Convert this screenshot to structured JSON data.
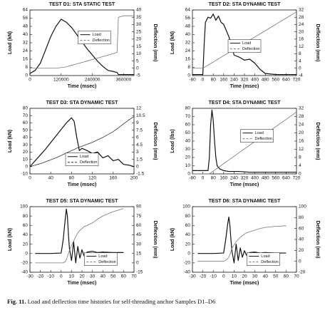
{
  "chart_data": [
    {
      "type": "line",
      "title": "TEST D1: STA STATIC TEST",
      "x_label": "Time (msec)",
      "y_label": "Load (kN)",
      "y2_label": "Deflection (mm)",
      "x": [
        0,
        20000,
        40000,
        60000,
        80000,
        100000,
        120000,
        140000,
        160000,
        180000,
        200000,
        220000,
        240000,
        260000,
        280000,
        300000,
        320000,
        335000,
        340000,
        360000,
        380000,
        400000
      ],
      "xlim": [
        0,
        400000
      ],
      "xticks": [
        0,
        120000,
        240000,
        360000
      ],
      "ylim": [
        0,
        64
      ],
      "yticks": [
        0,
        8,
        16,
        24,
        32,
        40,
        48,
        56,
        64
      ],
      "y2lim": [
        -5,
        40
      ],
      "y2ticks": [
        -5,
        0,
        5,
        10,
        15,
        20,
        25,
        30,
        35,
        40
      ],
      "legend": "center-right",
      "series": [
        {
          "name": "Load",
          "color": "#111111",
          "dashed": false,
          "values": [
            2,
            5,
            12,
            25,
            38,
            48,
            55,
            52,
            47,
            40,
            33,
            26,
            20,
            14,
            9,
            5,
            4,
            3,
            1,
            1,
            1,
            1
          ]
        },
        {
          "name": "Deflection",
          "color": "#777777",
          "dashed": true,
          "axis": "y2",
          "values": [
            0,
            0,
            0,
            0,
            0,
            0,
            0.5,
            1,
            2,
            3,
            4,
            5,
            6,
            7,
            8,
            9,
            10,
            11,
            35,
            36,
            36,
            36
          ]
        }
      ]
    },
    {
      "type": "line",
      "title": "TEST D2: STA DYNAMIC TEST",
      "x_label": "Time (msec)",
      "y_label": "Load (kN)",
      "y2_label": "Deflection (mm)",
      "x": [
        -80,
        -20,
        0,
        10,
        20,
        40,
        60,
        80,
        100,
        120,
        140,
        160,
        180,
        200,
        220,
        240,
        280,
        320,
        360,
        400,
        440,
        480,
        560,
        640,
        720
      ],
      "xlim": [
        -80,
        720
      ],
      "xticks": [
        -80,
        0,
        80,
        160,
        240,
        320,
        400,
        480,
        560,
        640,
        720
      ],
      "ylim": [
        0,
        64
      ],
      "yticks": [
        0,
        8,
        16,
        24,
        32,
        40,
        48,
        56,
        64
      ],
      "y2lim": [
        -4,
        32
      ],
      "y2ticks": [
        -4,
        0,
        4,
        8,
        12,
        16,
        20,
        24,
        28,
        32
      ],
      "legend": "center",
      "series": [
        {
          "name": "Load",
          "color": "#111111",
          "dashed": false,
          "values": [
            1,
            1,
            1,
            30,
            52,
            57,
            56,
            60,
            54,
            58,
            52,
            50,
            44,
            38,
            30,
            20,
            18,
            15,
            16,
            12,
            6,
            2,
            1,
            1,
            1
          ]
        },
        {
          "name": "Deflection",
          "color": "#777777",
          "dashed": true,
          "axis": "y2",
          "values": [
            0,
            0,
            0,
            0.4,
            0.9,
            1.7,
            2.6,
            3.4,
            4.3,
            5.2,
            6,
            6.9,
            7.7,
            8.6,
            9.5,
            10.3,
            12,
            13.8,
            15.5,
            17.2,
            18.9,
            20.6,
            24.1,
            27.5,
            31
          ]
        }
      ]
    },
    {
      "type": "line",
      "title": "TEST D3: STA DYNAMIC TEST",
      "x_label": "Time (msec)",
      "y_label": "Load (kN)",
      "y2_label": "Deflection (mm)",
      "x": [
        0,
        10,
        20,
        30,
        40,
        50,
        60,
        70,
        80,
        85,
        90,
        95,
        100,
        110,
        120,
        130,
        140,
        150,
        160,
        170,
        180,
        190,
        200
      ],
      "xlim": [
        0,
        200
      ],
      "xticks": [
        0,
        40,
        80,
        120,
        160,
        200
      ],
      "ylim": [
        -10,
        80
      ],
      "yticks": [
        -10,
        0,
        10,
        20,
        30,
        40,
        50,
        60,
        70,
        80
      ],
      "y2lim": [
        -1.5,
        12
      ],
      "y2ticks": [
        -1.5,
        0,
        1.5,
        3,
        4.5,
        6,
        7.5,
        9,
        10.5,
        12
      ],
      "legend": "bottom-center",
      "series": [
        {
          "name": "Load",
          "color": "#111111",
          "dashed": false,
          "values": [
            0,
            8,
            16,
            24,
            33,
            42,
            51,
            60,
            67,
            62,
            40,
            22,
            25,
            22,
            18,
            20,
            12,
            15,
            8,
            10,
            3,
            2,
            0
          ]
        },
        {
          "name": "Deflection",
          "color": "#333333",
          "dashed": true,
          "axis": "y2",
          "values": [
            0,
            0.3,
            0.6,
            1,
            1.4,
            1.8,
            2.3,
            2.8,
            3.3,
            3.5,
            3.8,
            4,
            4.2,
            4.6,
            5,
            5.5,
            6,
            6.6,
            7.2,
            8,
            8.8,
            9.6,
            10.3
          ]
        }
      ]
    },
    {
      "type": "line",
      "title": "TEST D4: STA DYNAMIC TEST",
      "x_label": "Time (msec)",
      "y_label": "Load (lbs)",
      "y2_label": "Deflection (mm)",
      "x": [
        -80,
        0,
        40,
        50,
        60,
        70,
        80,
        90,
        100,
        110,
        130,
        160,
        200,
        280,
        360,
        440,
        520,
        600,
        720
      ],
      "xlim": [
        -80,
        720
      ],
      "xticks": [
        -80,
        0,
        80,
        160,
        240,
        320,
        400,
        480,
        560,
        640,
        720
      ],
      "ylim": [
        0,
        80
      ],
      "yticks": [
        0,
        10,
        20,
        30,
        40,
        50,
        60,
        70,
        80
      ],
      "y2lim": [
        0,
        32
      ],
      "y2ticks": [
        0,
        4,
        8,
        12,
        16,
        20,
        24,
        28,
        32
      ],
      "legend": "center-right",
      "series": [
        {
          "name": "Load",
          "color": "#111111",
          "dashed": false,
          "values": [
            4,
            4,
            4,
            20,
            60,
            78,
            65,
            40,
            20,
            10,
            6,
            4,
            3,
            3,
            2,
            2,
            2,
            2,
            2
          ]
        },
        {
          "name": "Deflection",
          "color": "#777777",
          "dashed": true,
          "axis": "y2",
          "values": [
            0,
            0,
            0,
            0,
            0.45,
            0.9,
            1.35,
            1.8,
            2.25,
            2.7,
            3.6,
            5,
            6.8,
            10.4,
            14,
            17.5,
            21.2,
            24.8,
            30.2
          ]
        }
      ]
    },
    {
      "type": "line",
      "title": "TEST D5: STA DYNAMIC TEST",
      "x_label": "Time (msec)",
      "y_label": "Load (kN)",
      "y2_label": "Deflection (mm)",
      "x": [
        -25,
        -10,
        0,
        2,
        4,
        5,
        6,
        7,
        8,
        10,
        12,
        14,
        16,
        18,
        20,
        22,
        25,
        30,
        35,
        40,
        50,
        60
      ],
      "xlim": [
        -30,
        70
      ],
      "xticks": [
        -30,
        -20,
        -10,
        0,
        10,
        20,
        30,
        40,
        50,
        60,
        70
      ],
      "ylim": [
        -40,
        100
      ],
      "yticks": [
        -40,
        -20,
        0,
        20,
        40,
        60,
        80,
        100
      ],
      "y2lim": [
        -15,
        90
      ],
      "y2ticks": [
        -15,
        0,
        15,
        30,
        45,
        60,
        75,
        90
      ],
      "legend": "bottom-right",
      "series": [
        {
          "name": "Load",
          "color": "#111111",
          "dashed": false,
          "values": [
            0,
            0,
            1,
            30,
            75,
            95,
            80,
            40,
            10,
            -15,
            25,
            -20,
            15,
            -10,
            8,
            -5,
            3,
            5,
            2,
            3,
            2,
            2
          ]
        },
        {
          "name": "Deflection",
          "color": "#777777",
          "dashed": true,
          "axis": "y2",
          "values": [
            0,
            0,
            0,
            0,
            2,
            5,
            10,
            15,
            20,
            28,
            35,
            42,
            48,
            52,
            55,
            58,
            60,
            64,
            70,
            75,
            82,
            87
          ]
        }
      ]
    },
    {
      "type": "line",
      "title": "TEST D6: STA DYNAMIC TEST",
      "x_label": "Time (msec)",
      "y_label": "Load (kN)",
      "y2_label": "Deflection (mm)",
      "x": [
        -25,
        -10,
        0,
        2,
        4,
        5,
        6,
        7,
        8,
        10,
        12,
        14,
        16,
        18,
        20,
        22,
        25,
        30,
        35,
        40,
        50,
        60
      ],
      "xlim": [
        -30,
        70
      ],
      "xticks": [
        -30,
        -20,
        -10,
        0,
        10,
        20,
        30,
        40,
        50,
        60,
        70
      ],
      "ylim": [
        -40,
        100
      ],
      "yticks": [
        -40,
        -20,
        0,
        20,
        40,
        60,
        80,
        100
      ],
      "y2lim": [
        -20,
        100
      ],
      "y2ticks": [
        -20,
        0,
        20,
        40,
        60,
        80,
        100
      ],
      "legend": "bottom-right",
      "series": [
        {
          "name": "Load",
          "color": "#111111",
          "dashed": false,
          "values": [
            0,
            0,
            1,
            30,
            65,
            78,
            60,
            30,
            5,
            -20,
            20,
            -15,
            12,
            -8,
            6,
            -4,
            2,
            3,
            1,
            2,
            1,
            1
          ]
        },
        {
          "name": "Deflection",
          "color": "#777777",
          "dashed": true,
          "axis": "y2",
          "values": [
            0,
            0,
            0,
            2,
            5,
            8,
            12,
            18,
            24,
            30,
            36,
            40,
            44,
            47,
            50,
            52,
            54,
            57,
            60,
            62,
            64,
            65
          ]
        }
      ]
    }
  ],
  "caption": {
    "label": "Fig. 11.",
    "text": "Load and deflection time histories for self-threading anchor Samples D1–D6"
  }
}
